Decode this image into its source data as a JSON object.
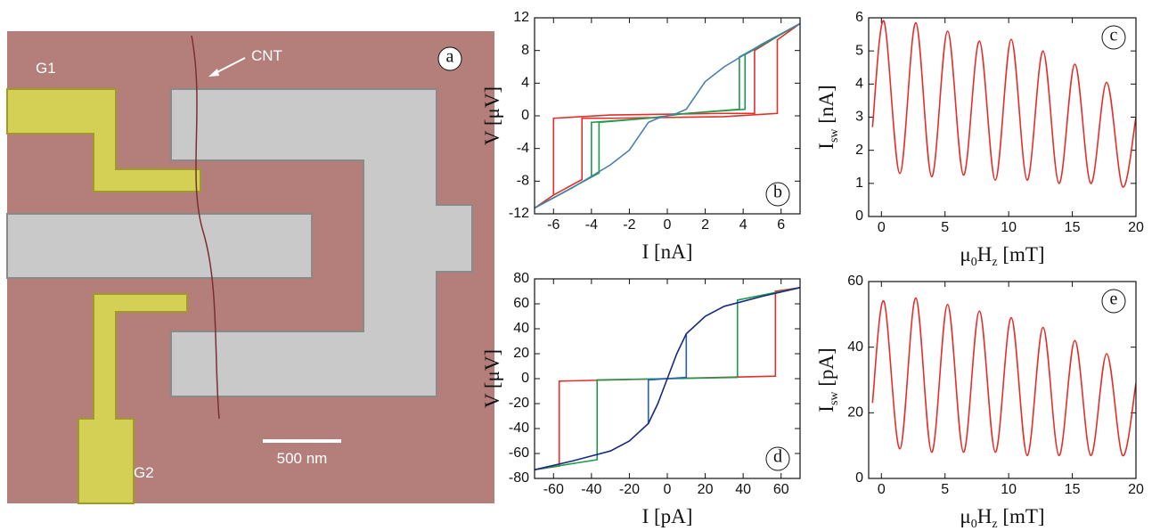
{
  "image_panel": {
    "panel_label": "a",
    "labels": {
      "g1": "G1",
      "g2": "G2",
      "cnt": "CNT",
      "scale": "500 nm"
    }
  },
  "chart_data": [
    {
      "type": "line",
      "panel_label": "b",
      "xlabel": [
        "I [nA]"
      ],
      "ylabel": [
        "V [μV]"
      ],
      "xlim": [
        -7,
        7
      ],
      "ylim": [
        -12,
        12
      ],
      "xticks": [
        -6,
        -4,
        -2,
        0,
        2,
        4,
        6
      ],
      "yticks": [
        -12,
        -8,
        -4,
        0,
        4,
        8,
        12
      ],
      "series": [
        {
          "color": "#e0302c",
          "x": [
            -7,
            -6,
            -4.5,
            -4.5,
            -3,
            0,
            3,
            5.8,
            5.8,
            7,
            6,
            4.6,
            4.6,
            3,
            0,
            -3,
            -6,
            -6,
            -7
          ],
          "values": [
            -11.3,
            -9.7,
            -7.8,
            -0.3,
            -0.3,
            -0.2,
            -0.1,
            0.3,
            9.3,
            11.3,
            10,
            8,
            0.3,
            0.3,
            0.2,
            0.1,
            -0.3,
            -9.7,
            -11.3
          ]
        },
        {
          "color": "#1e9a4a",
          "x": [
            -7,
            -3.6,
            -3.6,
            -1,
            0,
            1,
            4.1,
            4.1,
            7,
            3.8,
            3.8,
            1,
            0,
            -1,
            -4,
            -4,
            -7
          ],
          "values": [
            -11.3,
            -7,
            -0.8,
            -0.3,
            0,
            0.3,
            0.8,
            7.5,
            11.3,
            7.2,
            0.8,
            0.3,
            0,
            -0.3,
            -0.8,
            -7.5,
            -11.3
          ]
        },
        {
          "color": "#4a7fb0",
          "x": [
            -7,
            -5,
            -3,
            -2,
            -1.5,
            -1,
            -0.5,
            0,
            0.5,
            1,
            1.5,
            2,
            3,
            5,
            7
          ],
          "values": [
            -11.3,
            -8.8,
            -6,
            -4.2,
            -2.5,
            -0.8,
            -0.3,
            0,
            0.3,
            0.8,
            2.5,
            4.2,
            6,
            8.8,
            11.3
          ]
        }
      ]
    },
    {
      "type": "line",
      "panel_label": "c",
      "smooth": true,
      "xlabel": [
        "μ",
        "0",
        "H",
        "z",
        " [mT]"
      ],
      "ylabel": [
        "I",
        "sw",
        " [nA]"
      ],
      "xlim": [
        -1,
        20
      ],
      "ylim": [
        0,
        6
      ],
      "xticks": [
        0,
        5,
        10,
        15,
        20
      ],
      "yticks": [
        0,
        1,
        2,
        3,
        4,
        5,
        6
      ],
      "series": [
        {
          "color": "#e0302c",
          "x": [
            -0.7,
            0.2,
            1.45,
            2.7,
            3.95,
            5.2,
            6.45,
            7.7,
            8.95,
            10.2,
            11.45,
            12.7,
            13.95,
            15.2,
            16.45,
            17.7,
            18.95,
            20
          ],
          "values": [
            2.7,
            5.9,
            1.3,
            5.85,
            1.2,
            5.6,
            1.25,
            5.3,
            1.1,
            5.35,
            1.1,
            5.0,
            1.0,
            4.6,
            1.0,
            4.05,
            0.9,
            3.0
          ]
        }
      ]
    },
    {
      "type": "line",
      "panel_label": "d",
      "xlabel": [
        "I [pA]"
      ],
      "ylabel": [
        "V [μV]"
      ],
      "xlim": [
        -70,
        70
      ],
      "ylim": [
        -80,
        80
      ],
      "xticks": [
        -60,
        -40,
        -20,
        0,
        20,
        40,
        60
      ],
      "yticks": [
        -80,
        -60,
        -40,
        -20,
        0,
        20,
        40,
        60,
        80
      ],
      "series": [
        {
          "color": "#e0302c",
          "x": [
            -70,
            -57,
            -57,
            0,
            57,
            57,
            70
          ],
          "values": [
            -73,
            -70,
            -2,
            0,
            2,
            70,
            73
          ]
        },
        {
          "color": "#1e9a4a",
          "x": [
            -70,
            -37,
            -37,
            0,
            37,
            37,
            70
          ],
          "values": [
            -73,
            -65,
            -1,
            0,
            1,
            63,
            73
          ]
        },
        {
          "color": "#2060c0",
          "x": [
            -10,
            -10,
            0,
            10,
            10
          ],
          "values": [
            -36,
            -1,
            0,
            1,
            36
          ]
        },
        {
          "color": "#1a2a80",
          "x": [
            -70,
            -50,
            -30,
            -20,
            -10,
            -5,
            0,
            5,
            10,
            20,
            30,
            50,
            70
          ],
          "values": [
            -73,
            -66,
            -58,
            -50,
            -36,
            -20,
            0,
            20,
            36,
            50,
            58,
            66,
            73
          ]
        }
      ]
    },
    {
      "type": "line",
      "panel_label": "e",
      "smooth": true,
      "xlabel": [
        "μ",
        "0",
        "H",
        "z",
        " [mT]"
      ],
      "ylabel": [
        "I",
        "sw",
        " [pA]"
      ],
      "xlim": [
        -1,
        20
      ],
      "ylim": [
        0,
        60
      ],
      "xticks": [
        0,
        5,
        10,
        15,
        20
      ],
      "yticks": [
        0,
        20,
        40,
        60
      ],
      "series": [
        {
          "color": "#e0302c",
          "x": [
            -0.7,
            0.2,
            1.45,
            2.7,
            3.95,
            5.2,
            6.45,
            7.7,
            8.95,
            10.2,
            11.45,
            12.7,
            13.95,
            15.2,
            16.45,
            17.7,
            18.95,
            20
          ],
          "values": [
            23,
            54,
            9,
            55,
            8,
            53,
            8,
            51,
            8,
            49,
            7,
            46,
            7,
            42,
            7,
            38,
            7,
            29
          ]
        }
      ]
    }
  ]
}
